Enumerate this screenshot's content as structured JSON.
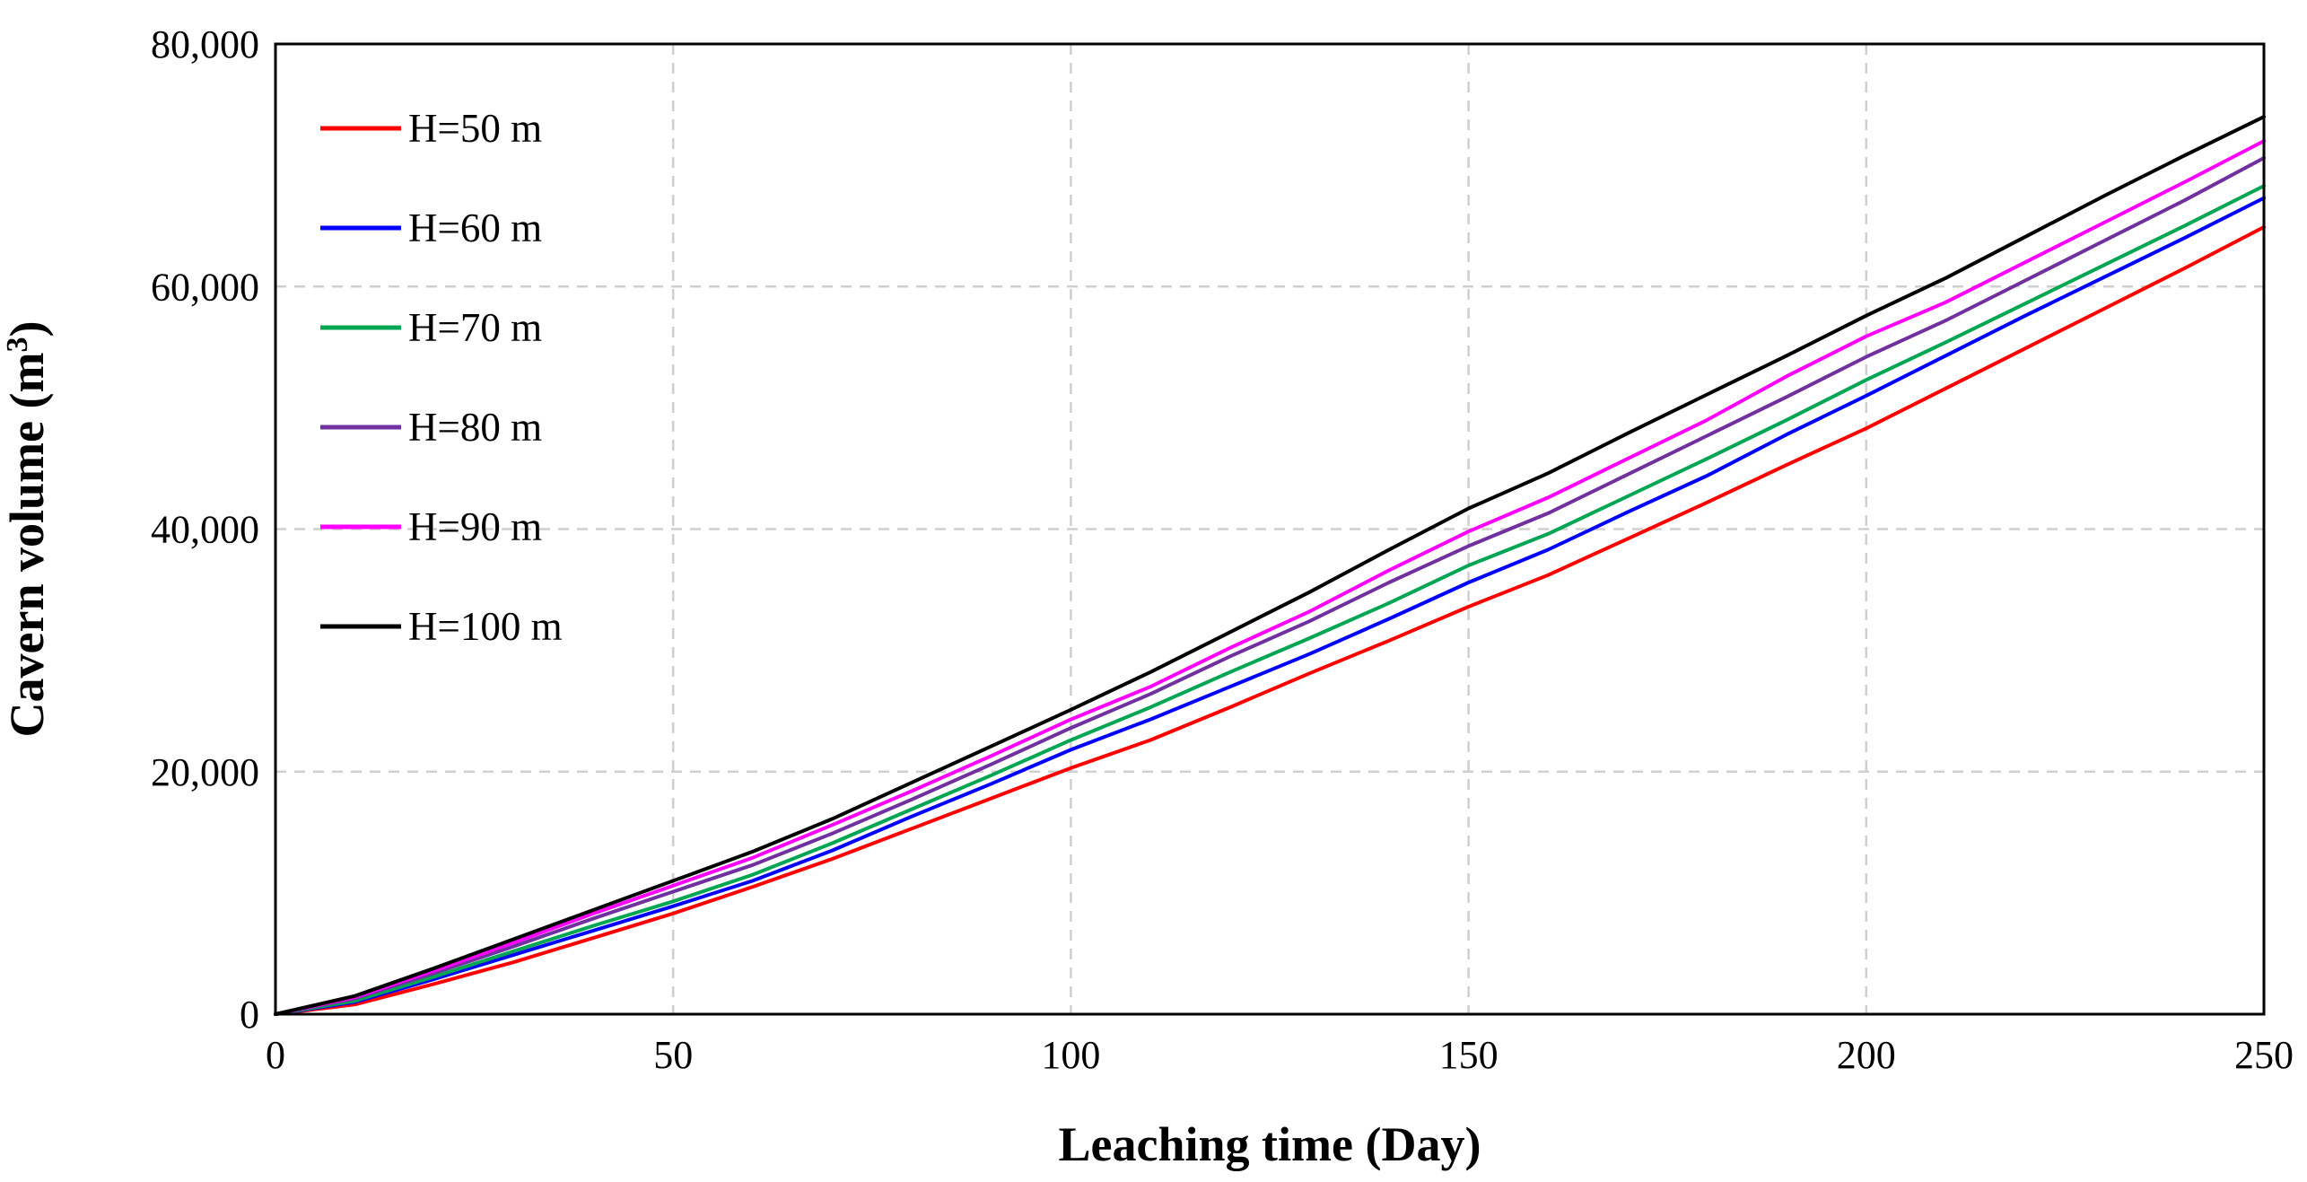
{
  "chart_data": {
    "type": "line",
    "title": "",
    "xlabel": "Leaching time (Day)",
    "ylabel_main": "Cavern volume (m",
    "ylabel_sup": "3",
    "ylabel_close": ")",
    "xlim": [
      0,
      250
    ],
    "ylim": [
      0,
      80000
    ],
    "x_ticks": [
      0,
      50,
      100,
      150,
      200,
      250
    ],
    "x_tick_labels": [
      "0",
      "50",
      "100",
      "150",
      "200",
      "250"
    ],
    "y_ticks": [
      0,
      20000,
      40000,
      60000,
      80000
    ],
    "y_tick_labels": [
      "0",
      "20,000",
      "40,000",
      "60,000",
      "80,000"
    ],
    "grid": true,
    "legend_position": "top-left",
    "series": [
      {
        "name": "H=50 m",
        "color": "#ff0000",
        "x": [
          0,
          10,
          20,
          30,
          40,
          50,
          60,
          70,
          80,
          90,
          100,
          110,
          120,
          130,
          140,
          150,
          160,
          170,
          180,
          190,
          200,
          210,
          220,
          230,
          240,
          250
        ],
        "y": [
          0,
          800,
          2500,
          4300,
          6300,
          8300,
          10500,
          12800,
          15300,
          17800,
          20300,
          22600,
          25300,
          28100,
          30800,
          33600,
          36200,
          39200,
          42200,
          45300,
          48300,
          51600,
          54900,
          58200,
          61500,
          64900
        ]
      },
      {
        "name": "H=60 m",
        "color": "#0000ff",
        "x": [
          0,
          10,
          20,
          30,
          40,
          50,
          60,
          70,
          80,
          90,
          100,
          110,
          120,
          130,
          140,
          150,
          160,
          170,
          180,
          190,
          200,
          210,
          220,
          230,
          240,
          250
        ],
        "y": [
          0,
          1000,
          2900,
          4900,
          6900,
          8900,
          11000,
          13500,
          16300,
          19000,
          21800,
          24300,
          27000,
          29700,
          32600,
          35600,
          38300,
          41400,
          44400,
          47800,
          51000,
          54300,
          57600,
          60800,
          64000,
          67300
        ]
      },
      {
        "name": "H=70 m",
        "color": "#00a651",
        "x": [
          0,
          10,
          20,
          30,
          40,
          50,
          60,
          70,
          80,
          90,
          100,
          110,
          120,
          130,
          140,
          150,
          160,
          170,
          180,
          190,
          200,
          210,
          220,
          230,
          240,
          250
        ],
        "y": [
          0,
          1100,
          3100,
          5200,
          7300,
          9300,
          11500,
          14100,
          16900,
          19700,
          22600,
          25300,
          28200,
          31000,
          33900,
          37000,
          39600,
          42700,
          45800,
          49000,
          52300,
          55400,
          58600,
          61800,
          65000,
          68300
        ]
      },
      {
        "name": "H=80 m",
        "color": "#7030a0",
        "x": [
          0,
          10,
          20,
          30,
          40,
          50,
          60,
          70,
          80,
          90,
          100,
          110,
          120,
          130,
          140,
          150,
          160,
          170,
          180,
          190,
          200,
          210,
          220,
          230,
          240,
          250
        ],
        "y": [
          0,
          1300,
          3400,
          5600,
          7900,
          10100,
          12300,
          14900,
          17700,
          20600,
          23600,
          26400,
          29500,
          32400,
          35600,
          38600,
          41300,
          44500,
          47700,
          50900,
          54200,
          57200,
          60500,
          63800,
          67100,
          70600
        ]
      },
      {
        "name": "H=90 m",
        "color": "#ff00ff",
        "x": [
          0,
          10,
          20,
          30,
          40,
          50,
          60,
          70,
          80,
          90,
          100,
          110,
          120,
          130,
          140,
          150,
          160,
          170,
          180,
          190,
          200,
          210,
          220,
          230,
          240,
          250
        ],
        "y": [
          0,
          1400,
          3600,
          5900,
          8300,
          10600,
          12900,
          15600,
          18400,
          21300,
          24300,
          27000,
          30200,
          33200,
          36600,
          39800,
          42600,
          45800,
          49000,
          52600,
          55900,
          58700,
          62000,
          65300,
          68600,
          72000
        ]
      },
      {
        "name": "H=100 m",
        "color": "#000000",
        "x": [
          0,
          10,
          20,
          30,
          40,
          50,
          60,
          70,
          80,
          90,
          100,
          110,
          120,
          130,
          140,
          150,
          160,
          170,
          180,
          190,
          200,
          210,
          220,
          230,
          240,
          250
        ],
        "y": [
          0,
          1500,
          3800,
          6200,
          8600,
          11000,
          13400,
          16100,
          19100,
          22100,
          25100,
          28200,
          31500,
          34800,
          38300,
          41700,
          44600,
          47900,
          51100,
          54300,
          57600,
          60700,
          64100,
          67500,
          70800,
          74000
        ]
      }
    ]
  }
}
